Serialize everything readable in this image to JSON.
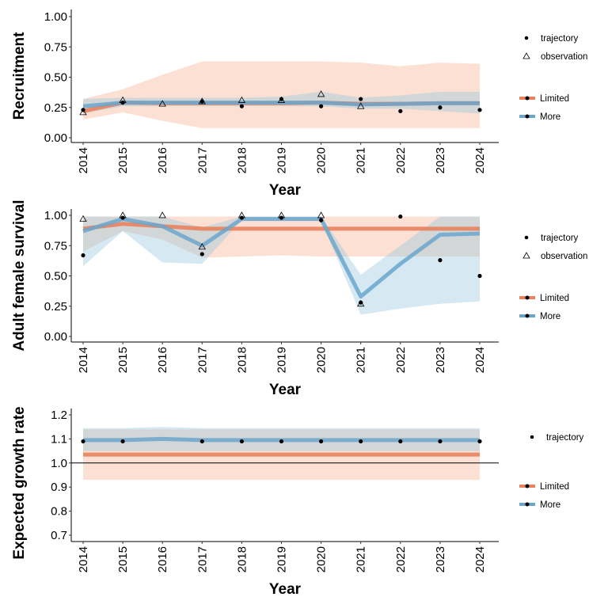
{
  "chart_data": [
    {
      "type": "line",
      "ylabel": "Recruitment",
      "xlabel": "Year",
      "x": [
        2014,
        2015,
        2016,
        2017,
        2018,
        2019,
        2020,
        2021,
        2022,
        2023,
        2024
      ],
      "ylim": [
        0,
        1
      ],
      "yticks": [
        "0.00",
        "0.25",
        "0.50",
        "0.75",
        "1.00"
      ],
      "ytick_values": [
        0,
        0.25,
        0.5,
        0.75,
        1
      ],
      "series": [
        {
          "name": "Limited",
          "color": "#E8825E",
          "ribbon_color": "#F4A582",
          "values": [
            0.22,
            0.29,
            0.285,
            0.285,
            0.285,
            0.285,
            0.29,
            0.28,
            0.28,
            0.285,
            0.285
          ],
          "lower": [
            0.15,
            0.21,
            0.14,
            0.08,
            0.08,
            0.08,
            0.08,
            0.08,
            0.08,
            0.08,
            0.08
          ],
          "upper": [
            0.32,
            0.4,
            0.52,
            0.63,
            0.63,
            0.63,
            0.63,
            0.62,
            0.59,
            0.62,
            0.61
          ]
        },
        {
          "name": "More",
          "color": "#6AA6CC",
          "ribbon_color": "#92C5DE",
          "values": [
            0.26,
            0.29,
            0.29,
            0.29,
            0.29,
            0.29,
            0.29,
            0.275,
            0.28,
            0.285,
            0.285
          ],
          "lower": [
            0.2,
            0.26,
            0.26,
            0.26,
            0.26,
            0.26,
            0.26,
            0.24,
            0.24,
            0.22,
            0.2
          ],
          "upper": [
            0.32,
            0.33,
            0.33,
            0.33,
            0.33,
            0.34,
            0.38,
            0.33,
            0.35,
            0.38,
            0.38
          ]
        }
      ],
      "trajectory": [
        0.23,
        0.29,
        null,
        0.3,
        0.26,
        0.32,
        0.26,
        0.32,
        0.22,
        0.25,
        0.23
      ],
      "observation": [
        0.21,
        0.31,
        0.28,
        0.3,
        0.31,
        0.31,
        0.36,
        0.26,
        null,
        null,
        null
      ],
      "legend": {
        "points": [
          "trajectory",
          "observation"
        ],
        "lines": [
          "Limited",
          "More"
        ],
        "position": "right"
      }
    },
    {
      "type": "line",
      "ylabel": "Adult female survival",
      "xlabel": "Year",
      "x": [
        2014,
        2015,
        2016,
        2017,
        2018,
        2019,
        2020,
        2021,
        2022,
        2023,
        2024
      ],
      "ylim": [
        0,
        1
      ],
      "yticks": [
        "0.00",
        "0.25",
        "0.50",
        "0.75",
        "1.00"
      ],
      "ytick_values": [
        0,
        0.25,
        0.5,
        0.75,
        1
      ],
      "series": [
        {
          "name": "Limited",
          "color": "#E8825E",
          "ribbon_color": "#F4A582",
          "values": [
            0.89,
            0.93,
            0.91,
            0.89,
            0.89,
            0.89,
            0.89,
            0.89,
            0.89,
            0.89,
            0.89
          ],
          "lower": [
            0.7,
            0.87,
            0.8,
            0.65,
            0.66,
            0.67,
            0.66,
            0.66,
            0.66,
            0.66,
            0.66
          ],
          "upper": [
            0.99,
            0.99,
            0.99,
            0.99,
            0.99,
            0.99,
            0.99,
            0.99,
            0.99,
            0.99,
            0.99
          ]
        },
        {
          "name": "More",
          "color": "#6AA6CC",
          "ribbon_color": "#92C5DE",
          "values": [
            0.87,
            0.97,
            0.91,
            0.75,
            0.97,
            0.97,
            0.97,
            0.33,
            0.6,
            0.84,
            0.85
          ],
          "lower": [
            0.58,
            0.87,
            0.61,
            0.6,
            0.96,
            0.96,
            0.96,
            0.18,
            0.23,
            0.27,
            0.29
          ],
          "upper": [
            0.99,
            0.99,
            0.99,
            0.9,
            0.99,
            0.99,
            0.99,
            0.51,
            0.75,
            0.99,
            0.99
          ]
        }
      ],
      "trajectory": [
        0.67,
        0.98,
        null,
        0.68,
        0.98,
        0.98,
        0.96,
        0.28,
        0.99,
        0.63,
        0.5
      ],
      "observation": [
        0.97,
        1.0,
        1.0,
        0.74,
        1.0,
        1.0,
        1.0,
        0.27,
        null,
        null,
        null
      ],
      "legend": {
        "points": [
          "trajectory",
          "observation"
        ],
        "lines": [
          "Limited",
          "More"
        ],
        "position": "right"
      }
    },
    {
      "type": "line",
      "ylabel": "Expected growth rate",
      "xlabel": "Year",
      "x": [
        2014,
        2015,
        2016,
        2017,
        2018,
        2019,
        2020,
        2021,
        2022,
        2023,
        2024
      ],
      "ylim": [
        0.68,
        1.22
      ],
      "yticks": [
        "0.7",
        "0.8",
        "0.9",
        "1.0",
        "1.1",
        "1.2"
      ],
      "ytick_values": [
        0.7,
        0.8,
        0.9,
        1.0,
        1.1,
        1.2
      ],
      "hline": 1.0,
      "series": [
        {
          "name": "Limited",
          "color": "#E8825E",
          "ribbon_color": "#F4A582",
          "values": [
            1.035,
            1.035,
            1.035,
            1.035,
            1.035,
            1.035,
            1.035,
            1.035,
            1.035,
            1.035,
            1.035
          ],
          "lower": [
            0.93,
            0.93,
            0.93,
            0.93,
            0.93,
            0.93,
            0.93,
            0.93,
            0.93,
            0.93,
            0.93
          ],
          "upper": [
            1.14,
            1.14,
            1.14,
            1.14,
            1.14,
            1.14,
            1.14,
            1.14,
            1.14,
            1.14,
            1.14
          ]
        },
        {
          "name": "More",
          "color": "#6AA6CC",
          "ribbon_color": "#92C5DE",
          "values": [
            1.095,
            1.095,
            1.1,
            1.095,
            1.095,
            1.095,
            1.095,
            1.095,
            1.095,
            1.095,
            1.095
          ],
          "lower": [
            1.05,
            1.05,
            1.05,
            1.05,
            1.05,
            1.05,
            1.05,
            1.05,
            1.05,
            1.05,
            1.05
          ],
          "upper": [
            1.145,
            1.145,
            1.15,
            1.145,
            1.145,
            1.145,
            1.145,
            1.145,
            1.145,
            1.145,
            1.145
          ]
        }
      ],
      "trajectory": [
        1.09,
        1.09,
        null,
        1.09,
        1.09,
        1.09,
        1.09,
        1.09,
        1.09,
        1.09,
        1.09
      ],
      "observation": [],
      "legend": {
        "points": [
          "trajectory"
        ],
        "lines": [
          "Limited",
          "More"
        ],
        "position": "right"
      }
    }
  ]
}
